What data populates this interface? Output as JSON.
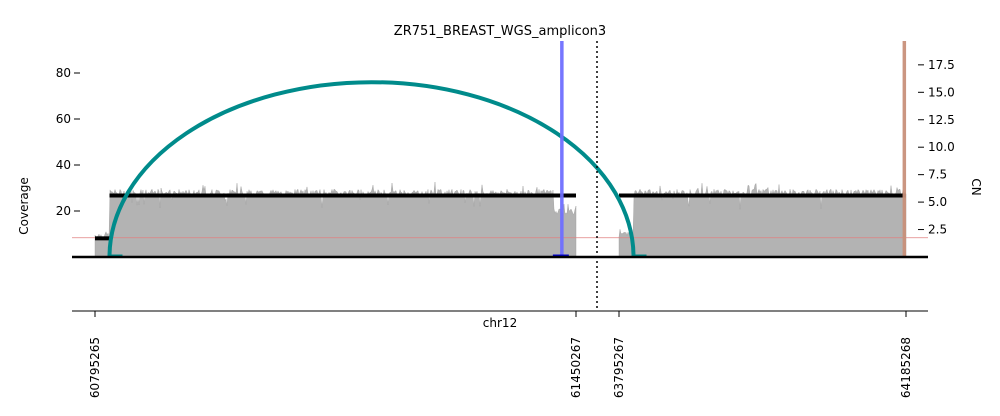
{
  "chart_data": {
    "type": "area",
    "title": "ZR751_BREAST_WGS_amplicon3",
    "xlabel": "chr12",
    "ylabel_left": "Coverage",
    "ylabel_right": "CN",
    "left_axis": {
      "ylim": [
        0,
        95
      ],
      "ticks": [
        20,
        40,
        60,
        80
      ]
    },
    "right_axis": {
      "ylim": [
        0,
        20.0
      ],
      "ticks": [
        "2.5",
        "5.0",
        "7.5",
        "10.0",
        "12.5",
        "15.0",
        "17.5"
      ]
    },
    "grid": false,
    "segments": [
      {
        "chrom": "chr12",
        "start": 60795265,
        "end": 61450267
      },
      {
        "chrom": "chr12",
        "start": 63795267,
        "end": 64185268
      }
    ],
    "x_tick_labels": [
      "60795265",
      "61450267",
      "63795267",
      "64185268"
    ],
    "coverage": [
      {
        "segment": 0,
        "from_pos": 60795265,
        "to_pos": 60815000,
        "mean": 9.5
      },
      {
        "segment": 0,
        "from_pos": 60815000,
        "to_pos": 61420000,
        "mean": 28
      },
      {
        "segment": 0,
        "from_pos": 61420000,
        "to_pos": 61450267,
        "mean": 20
      },
      {
        "segment": 1,
        "from_pos": 63795267,
        "to_pos": 63815000,
        "mean": 9.5
      },
      {
        "segment": 1,
        "from_pos": 63815000,
        "to_pos": 64185268,
        "mean": 28
      }
    ],
    "copy_number": [
      {
        "segment": 0,
        "start": 60795265,
        "end": 60815000,
        "cn": 1.7
      },
      {
        "segment": 0,
        "start": 60815000,
        "end": 61450267,
        "cn": 5.6
      },
      {
        "segment": 1,
        "start": 63795267,
        "end": 64185268,
        "cn": 5.6
      }
    ],
    "cn_reference_line": 1.75,
    "breakpoints": [
      {
        "type": "arc",
        "from": 60815000,
        "to": 63815000,
        "color": "#008b8b",
        "peak_coverage": 76
      },
      {
        "type": "vertical",
        "pos": 61431000,
        "color": "#6f6fff"
      },
      {
        "type": "vertical",
        "pos": 64183000,
        "color": "#c8907a"
      }
    ],
    "colors": {
      "coverage": "#b3b3b3",
      "coverage_edge": "#9a9a9a",
      "copy_number": "#000000",
      "reference_line": "#e08080",
      "arc": "#008b8b",
      "blue_marker": "#6f6fff",
      "brown_marker": "#c8907a",
      "small_blue_box": "#0000cc",
      "small_teal_box": "#008b8b"
    }
  }
}
